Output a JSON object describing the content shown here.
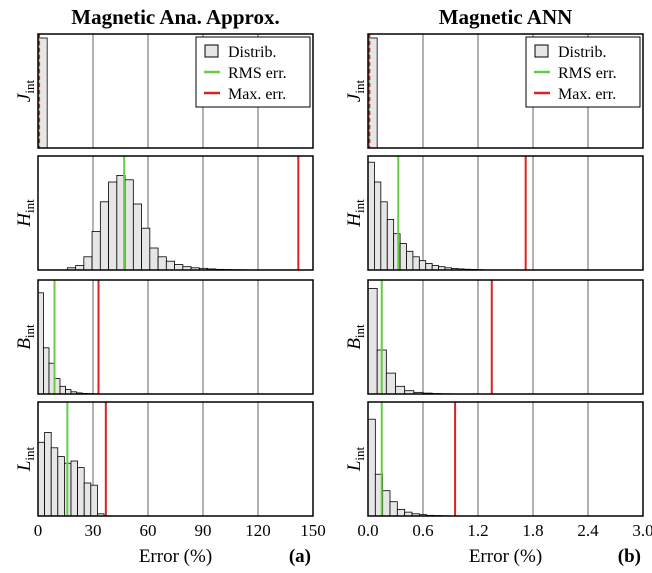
{
  "figure": {
    "legend": {
      "distrib": "Distrib.",
      "rms": "RMS err.",
      "max": "Max. err."
    },
    "colors": {
      "bar_fill": "#e6e6e6",
      "bar_stroke": "#000000",
      "rms": "#66cc44",
      "max": "#dd2222",
      "grid": "#666666"
    }
  },
  "chart_data": [
    {
      "type": "bar",
      "panel_label": "(a)",
      "title": "Magnetic Ana. Approx.",
      "xlabel": "Error (%)",
      "xlim": [
        0,
        150
      ],
      "xticks": [
        0,
        30,
        60,
        90,
        120,
        150
      ],
      "xtick_labels": [
        "0",
        "30",
        "60",
        "90",
        "120",
        "150"
      ],
      "legend": true,
      "subplots": [
        {
          "ylabel": "J",
          "ylabel_sub": "int",
          "bin_width": 5,
          "bin_start": 0,
          "values": [
            1.0
          ],
          "rms": 0.3,
          "max": 0.6
        },
        {
          "ylabel": "H",
          "ylabel_sub": "int",
          "bin_width": 4.5,
          "bin_start": 16,
          "values": [
            0.02,
            0.04,
            0.12,
            0.35,
            0.62,
            0.8,
            0.86,
            0.82,
            0.6,
            0.38,
            0.2,
            0.12,
            0.08,
            0.05,
            0.03,
            0.02,
            0.015,
            0.01,
            0.006,
            0.004,
            0.003,
            0.002
          ],
          "rms": 47,
          "max": 142
        },
        {
          "ylabel": "B",
          "ylabel_sub": "int",
          "bin_width": 3,
          "bin_start": 0,
          "values": [
            0.92,
            0.42,
            0.28,
            0.14,
            0.07,
            0.04,
            0.02,
            0.01,
            0.005,
            0.003,
            0.002
          ],
          "rms": 9,
          "max": 33
        },
        {
          "ylabel": "L",
          "ylabel_sub": "int",
          "bin_width": 3.6,
          "bin_start": 0,
          "values": [
            0.67,
            0.76,
            0.62,
            0.54,
            0.48,
            0.5,
            0.44,
            0.3,
            0.28,
            0.02
          ],
          "rms": 16,
          "max": 37
        }
      ]
    },
    {
      "type": "bar",
      "panel_label": "(b)",
      "title": "Magnetic ANN",
      "xlabel": "Error (%)",
      "xlim": [
        0,
        3.0
      ],
      "xticks": [
        0,
        0.6,
        1.2,
        1.8,
        2.4,
        3.0
      ],
      "xtick_labels": [
        "0.0",
        "0.6",
        "1.2",
        "1.8",
        "2.4",
        "3.0"
      ],
      "legend": true,
      "subplots": [
        {
          "ylabel": "J",
          "ylabel_sub": "int",
          "bin_width": 0.1,
          "bin_start": 0,
          "values": [
            1.0
          ],
          "rms": 0.01,
          "max": 0.015
        },
        {
          "ylabel": "H",
          "ylabel_sub": "int",
          "bin_width": 0.07,
          "bin_start": 0,
          "values": [
            0.98,
            0.8,
            0.62,
            0.46,
            0.33,
            0.24,
            0.17,
            0.12,
            0.085,
            0.06,
            0.04,
            0.03,
            0.02,
            0.014,
            0.01,
            0.007,
            0.005,
            0.003
          ],
          "rms": 0.33,
          "max": 1.72
        },
        {
          "ylabel": "B",
          "ylabel_sub": "int",
          "bin_width": 0.1,
          "bin_start": 0,
          "values": [
            0.96,
            0.4,
            0.19,
            0.07,
            0.03,
            0.015,
            0.008,
            0.004,
            0.002
          ],
          "rms": 0.15,
          "max": 1.35
        },
        {
          "ylabel": "L",
          "ylabel_sub": "int",
          "bin_width": 0.08,
          "bin_start": 0,
          "values": [
            0.88,
            0.38,
            0.23,
            0.13,
            0.06,
            0.035,
            0.02,
            0.012,
            0.006,
            0.004,
            0.002
          ],
          "rms": 0.15,
          "max": 0.95
        }
      ]
    }
  ]
}
